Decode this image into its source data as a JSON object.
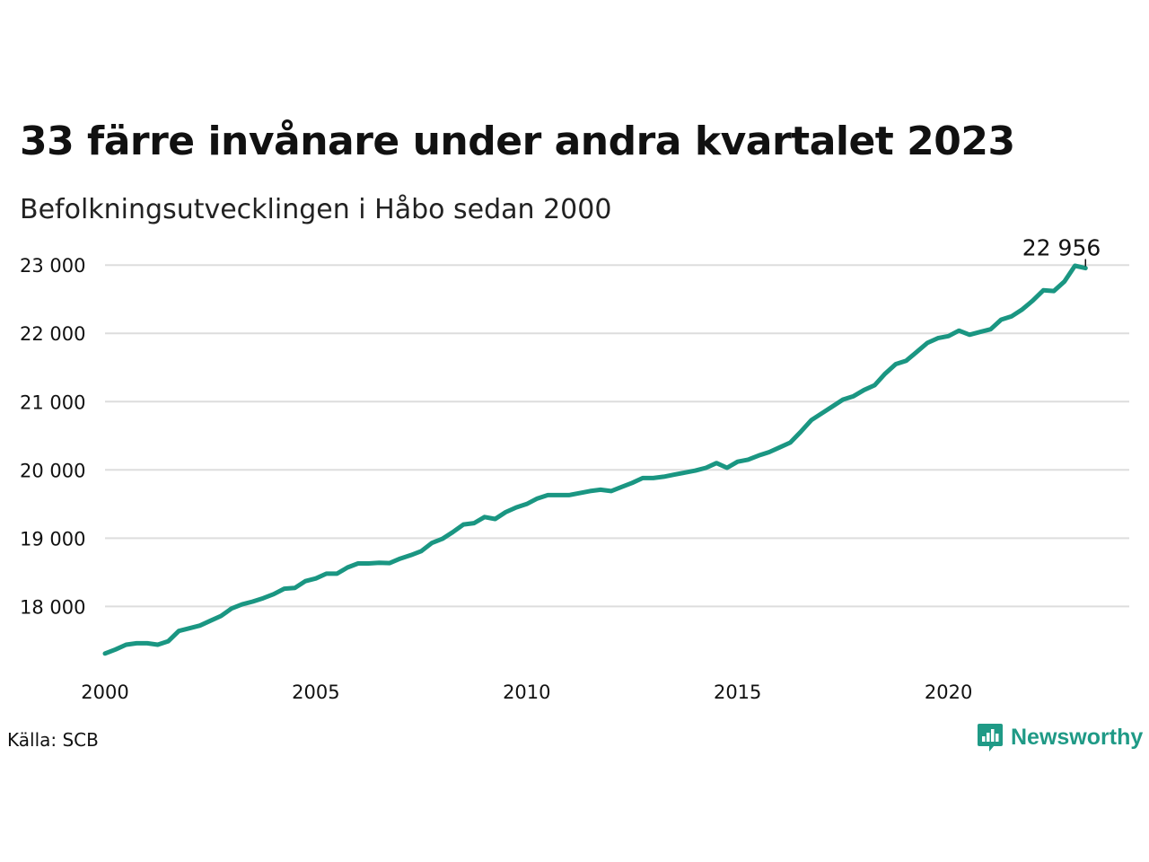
{
  "title": "33 färre invånare under andra kvartalet 2023",
  "subtitle": "Befolkningsutvecklingen i Håbo sedan 2000",
  "source": "Källa: SCB",
  "brand": {
    "name": "Newsworthy",
    "icon": "newsworthy-logo-icon",
    "color": "#1f9a86"
  },
  "chart_data": {
    "type": "line",
    "title": "33 färre invånare under andra kvartalet 2023",
    "subtitle": "Befolkningsutvecklingen i Håbo sedan 2000",
    "xlabel": "",
    "ylabel": "",
    "grid": true,
    "line_color": "#1a9682",
    "grid_color": "#dddddd",
    "xlim": [
      2000.0,
      2024.5
    ],
    "ylim": [
      17150,
      23200
    ],
    "x_ticks": [
      {
        "value": 2000,
        "label": "2000"
      },
      {
        "value": 2005,
        "label": "2005"
      },
      {
        "value": 2010,
        "label": "2010"
      },
      {
        "value": 2015,
        "label": "2015"
      },
      {
        "value": 2020,
        "label": "2020"
      }
    ],
    "y_ticks": [
      {
        "value": 18000,
        "label": "18 000"
      },
      {
        "value": 19000,
        "label": "19 000"
      },
      {
        "value": 20000,
        "label": "20 000"
      },
      {
        "value": 21000,
        "label": "21 000"
      },
      {
        "value": 22000,
        "label": "22 000"
      },
      {
        "value": 23000,
        "label": "23 000"
      }
    ],
    "series": [
      {
        "x": [
          2000.0,
          2000.25,
          2000.5,
          2000.75,
          2001.0,
          2001.25,
          2001.5,
          2001.75,
          2002.0,
          2002.25,
          2002.5,
          2002.75,
          2003.0,
          2003.25,
          2003.5,
          2003.75,
          2004.0,
          2004.25,
          2004.5,
          2004.75,
          2005.0,
          2005.25,
          2005.5,
          2005.75,
          2006.0,
          2006.25,
          2006.5,
          2006.75,
          2007.0,
          2007.25,
          2007.5,
          2007.75,
          2008.0,
          2008.25,
          2008.5,
          2008.75,
          2009.0,
          2009.25,
          2009.5,
          2009.75,
          2010.0,
          2010.25,
          2010.5,
          2010.75,
          2011.0,
          2011.25,
          2011.5,
          2011.75,
          2012.0,
          2012.25,
          2012.5,
          2012.75,
          2013.0,
          2013.25,
          2013.5,
          2013.75,
          2014.0,
          2014.25,
          2014.5,
          2014.75,
          2015.0,
          2015.25,
          2015.5,
          2015.75,
          2016.0,
          2016.25,
          2016.5,
          2016.75,
          2017.0,
          2017.25,
          2017.5,
          2017.75,
          2018.0,
          2018.25,
          2018.5,
          2018.75,
          2019.0,
          2019.25,
          2019.5,
          2019.75,
          2020.0,
          2020.25,
          2020.5,
          2020.75,
          2021.0,
          2021.25,
          2021.5,
          2021.75,
          2022.0,
          2022.25,
          2022.5,
          2022.75,
          2023.0,
          2023.25
        ],
        "y": [
          17310,
          17370,
          17440,
          17460,
          17460,
          17440,
          17490,
          17640,
          17680,
          17720,
          17790,
          17860,
          17970,
          18030,
          18070,
          18120,
          18180,
          18260,
          18270,
          18370,
          18410,
          18480,
          18480,
          18570,
          18630,
          18630,
          18640,
          18635,
          18700,
          18750,
          18810,
          18930,
          18990,
          19090,
          19200,
          19220,
          19310,
          19280,
          19380,
          19450,
          19500,
          19580,
          19630,
          19630,
          19630,
          19660,
          19690,
          19710,
          19690,
          19750,
          19810,
          19880,
          19880,
          19900,
          19930,
          19960,
          19990,
          20030,
          20100,
          20030,
          20120,
          20150,
          20210,
          20260,
          20330,
          20400,
          20560,
          20730,
          20830,
          20930,
          21030,
          21080,
          21170,
          21240,
          21410,
          21550,
          21600,
          21730,
          21860,
          21930,
          21960,
          22040,
          21980,
          22020,
          22060,
          22200,
          22250,
          22350,
          22480,
          22630,
          22620,
          22760,
          22989,
          22956
        ]
      }
    ],
    "annotations": [
      {
        "x": 2023.25,
        "y": 22956,
        "text": "22 956"
      }
    ]
  }
}
